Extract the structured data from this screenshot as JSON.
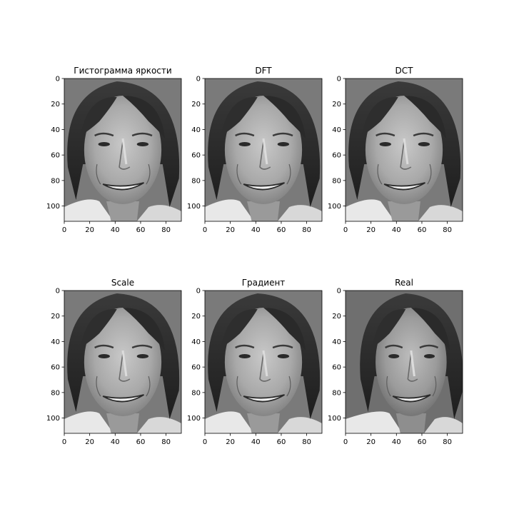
{
  "panels": [
    {
      "title": "Гистограмма яркости",
      "variant": "bright"
    },
    {
      "title": "DFT",
      "variant": "bright"
    },
    {
      "title": "DCT",
      "variant": "bright"
    },
    {
      "title": "Scale",
      "variant": "bright"
    },
    {
      "title": "Градиент",
      "variant": "bright"
    },
    {
      "title": "Real",
      "variant": "real"
    }
  ],
  "axes": {
    "xlim": [
      0,
      92
    ],
    "ylim": [
      0,
      112
    ],
    "yinverted": true,
    "xticks": [
      0,
      20,
      40,
      60,
      80
    ],
    "yticks": [
      0,
      20,
      40,
      60,
      80,
      100
    ]
  },
  "colors": {
    "background": "#ffffff",
    "axis": "#000000",
    "image_background_bright": "#7a7a7a",
    "image_background_real": "#6f6f6f"
  }
}
